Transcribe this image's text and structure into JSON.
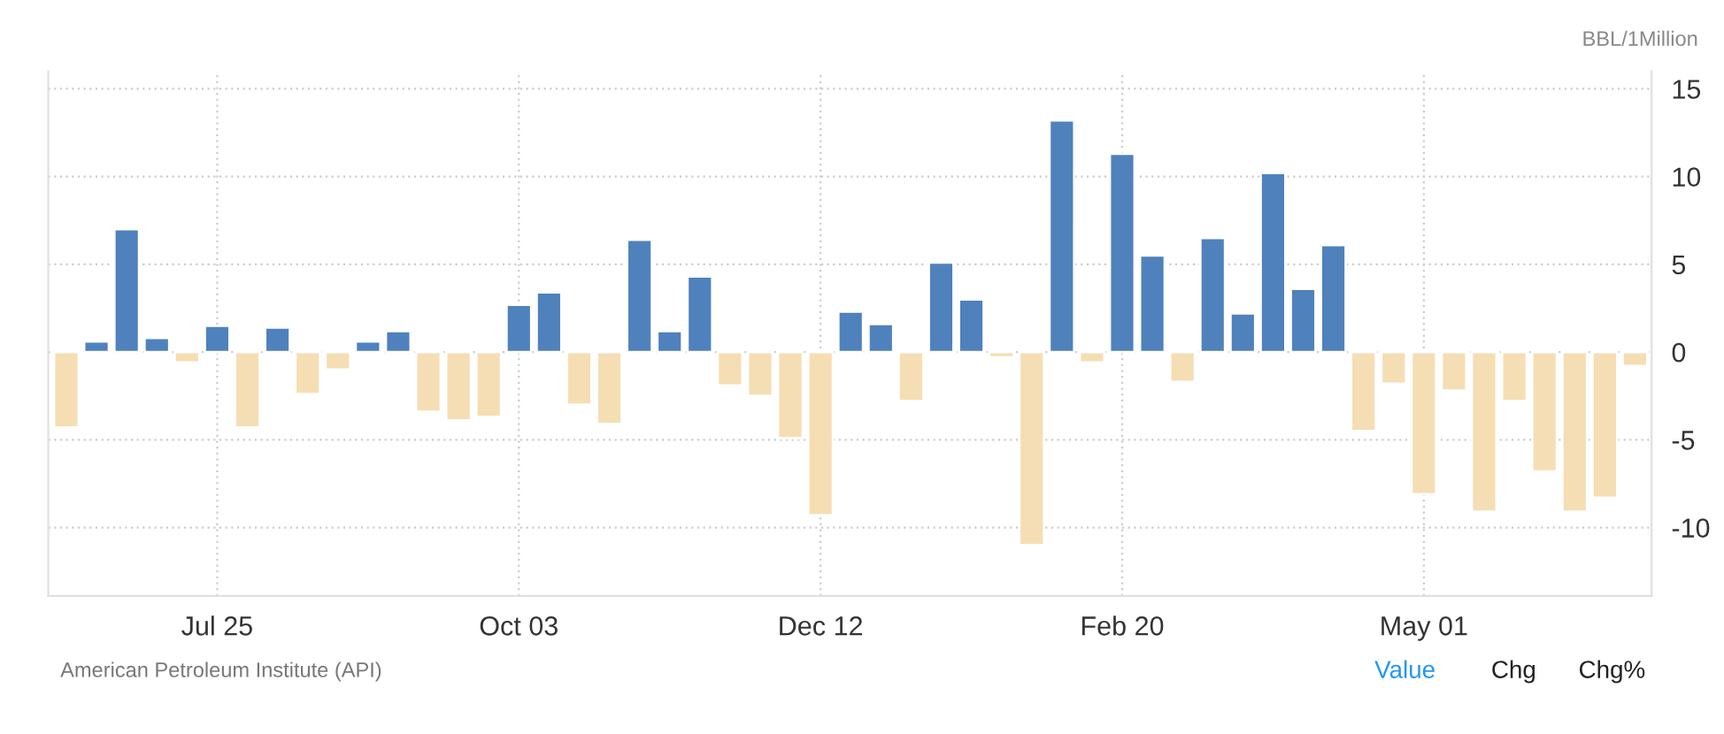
{
  "chart_data": {
    "type": "bar",
    "ylabel": "BBL/1Million",
    "categories": [
      null,
      null,
      null,
      null,
      null,
      "Jul 25",
      null,
      null,
      null,
      null,
      null,
      null,
      null,
      null,
      null,
      "Oct 03",
      null,
      null,
      null,
      null,
      null,
      null,
      null,
      null,
      null,
      "Dec 12",
      null,
      null,
      null,
      null,
      null,
      null,
      null,
      null,
      null,
      "Feb 20",
      null,
      null,
      null,
      null,
      null,
      null,
      null,
      null,
      null,
      "May 01",
      null,
      null,
      null,
      null,
      null,
      null,
      null
    ],
    "values": [
      -4.3,
      0.6,
      7.0,
      0.8,
      -0.6,
      1.5,
      -4.3,
      1.4,
      -2.4,
      -1.0,
      0.6,
      1.2,
      -3.4,
      -3.9,
      -3.7,
      2.7,
      3.4,
      -3.0,
      -4.1,
      6.4,
      1.2,
      4.3,
      -1.9,
      -2.5,
      -4.9,
      -9.3,
      2.3,
      1.6,
      -2.8,
      5.1,
      3.0,
      -0.3,
      -11.0,
      13.2,
      -0.6,
      11.3,
      5.5,
      -1.7,
      6.5,
      2.2,
      10.2,
      3.6,
      6.1,
      -4.5,
      -1.8,
      -8.1,
      -2.2,
      -9.1,
      -2.8,
      -6.8,
      -9.1,
      -8.3,
      -0.8
    ],
    "colors": [
      "#f5deb3",
      "#4f81bd",
      "#4f81bd",
      "#4f81bd",
      "#f5deb3",
      "#4f81bd",
      "#f5deb3",
      "#4f81bd",
      "#f5deb3",
      "#f5deb3",
      "#4f81bd",
      "#4f81bd",
      "#f5deb3",
      "#f5deb3",
      "#f5deb3",
      "#4f81bd",
      "#4f81bd",
      "#f5deb3",
      "#f5deb3",
      "#4f81bd",
      "#4f81bd",
      "#4f81bd",
      "#f5deb3",
      "#f5deb3",
      "#f5deb3",
      "#f5deb3",
      "#4f81bd",
      "#4f81bd",
      "#f5deb3",
      "#4f81bd",
      "#4f81bd",
      "#f5deb3",
      "#f5deb3",
      "#4f81bd",
      "#f5deb3",
      "#4f81bd",
      "#4f81bd",
      "#f5deb3",
      "#4f81bd",
      "#4f81bd",
      "#4f81bd",
      "#4f81bd",
      "#4f81bd",
      "#f5deb3",
      "#f5deb3",
      "#f5deb3",
      "#f5deb3",
      "#f5deb3",
      "#f5deb3",
      "#f5deb3",
      "#f5deb3",
      "#f5deb3",
      "#f5deb3"
    ],
    "ylim": [
      -13.9,
      16
    ],
    "yticks": [
      -10,
      -5,
      0,
      5,
      10,
      15
    ],
    "grid": true,
    "annotations": [
      "American Petroleum Institute (API)",
      "Value",
      "Chg",
      "Chg%"
    ]
  }
}
